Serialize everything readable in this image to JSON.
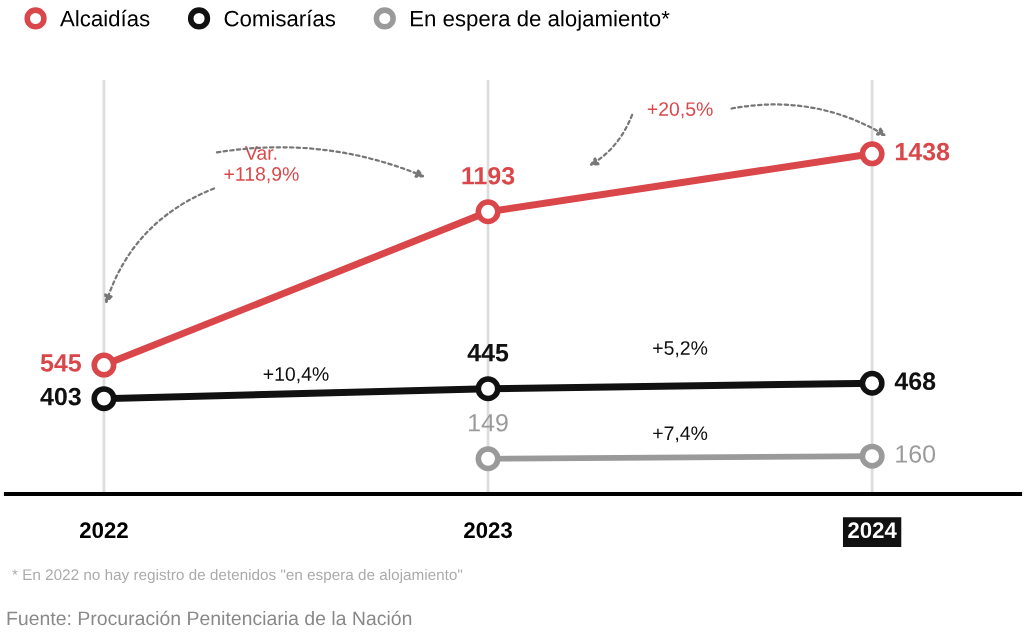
{
  "chart_data": {
    "type": "line",
    "categories": [
      "2022",
      "2023",
      "2024"
    ],
    "series": [
      {
        "name": "Alcaidías",
        "color": "#d9474a",
        "values": [
          545,
          1193,
          1438
        ]
      },
      {
        "name": "Comisarías",
        "color": "#111111",
        "values": [
          403,
          445,
          468
        ]
      },
      {
        "name": "En espera de alojamiento*",
        "color": "#9a9a9a",
        "values": [
          null,
          149,
          160
        ]
      }
    ],
    "ylim": [
      0,
      1750
    ],
    "data_labels": true,
    "marker": "circle",
    "line_style": "solid",
    "grid": "x",
    "legend": "top left",
    "annotations": [
      "Var.\n+118,9%",
      "+20,5%",
      "+10,4%",
      "+5,2%",
      "+7,4%",
      "* En 2022 no hay registro de detenidos \"en espera de alojamiento\"",
      "Fuente: Procuración Penitenciaria de la Nación"
    ]
  }
}
